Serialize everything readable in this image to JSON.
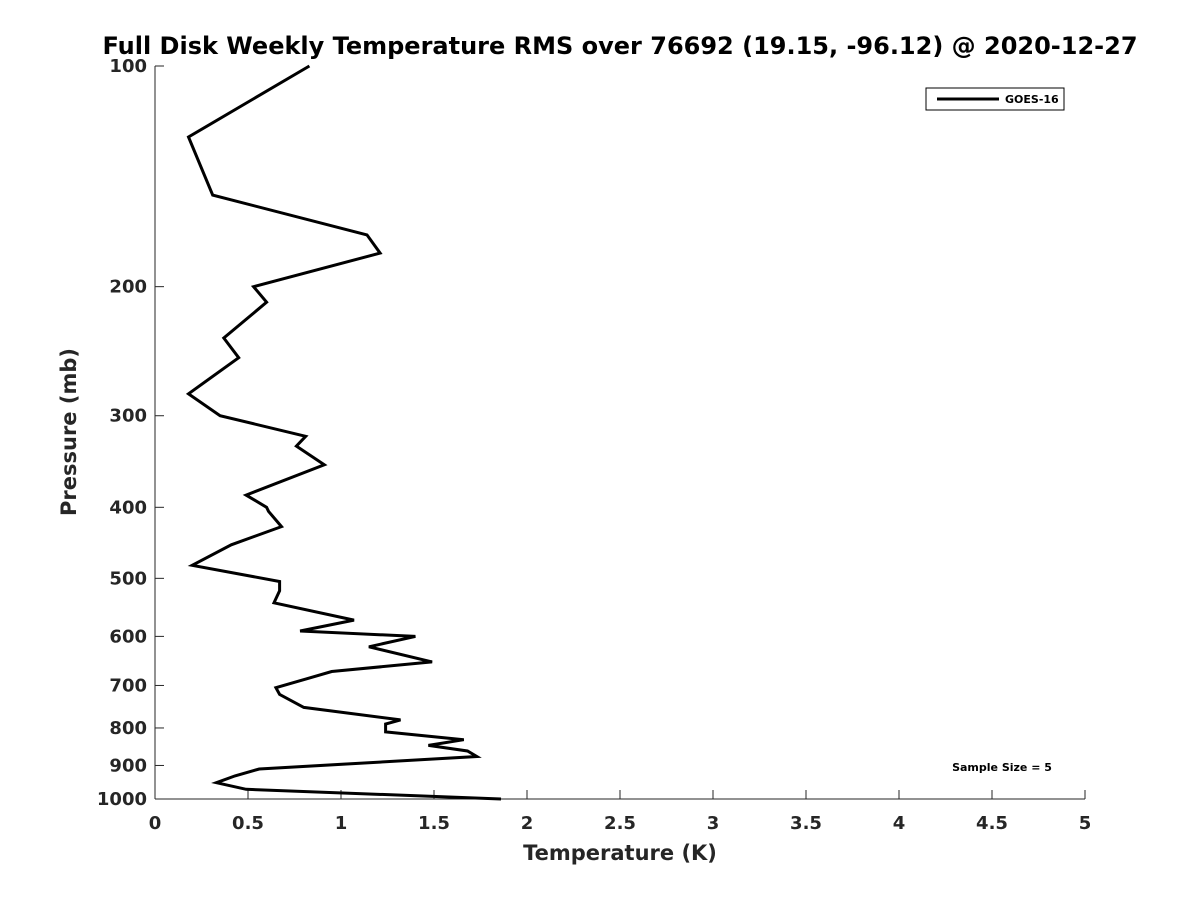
{
  "chart_data": {
    "type": "line",
    "title": "Full Disk Weekly Temperature RMS over 76692 (19.15, -96.12) @ 2020-12-27",
    "xlabel": "Temperature (K)",
    "ylabel": "Pressure (mb)",
    "xlim": [
      0,
      5
    ],
    "ylim": [
      100,
      1000
    ],
    "y_scale": "log",
    "y_reversed": true,
    "x_ticks": [
      "0",
      "0.5",
      "1",
      "1.5",
      "2",
      "2.5",
      "3",
      "3.5",
      "4",
      "4.5",
      "5"
    ],
    "y_ticks": [
      "100",
      "200",
      "300",
      "400",
      "500",
      "600",
      "700",
      "800",
      "900",
      "1000"
    ],
    "grid": false,
    "legend_position": "top-right",
    "annotation": "Sample Size = 5",
    "series": [
      {
        "name": "GOES-16",
        "color": "#000000",
        "x": [
          0.83,
          0.18,
          0.31,
          1.14,
          1.21,
          0.53,
          0.6,
          0.37,
          0.45,
          0.18,
          0.35,
          0.81,
          0.76,
          0.91,
          0.49,
          0.6,
          0.61,
          0.68,
          0.41,
          0.2,
          0.67,
          0.67,
          0.64,
          1.07,
          0.78,
          1.4,
          1.15,
          1.49,
          0.95,
          0.82,
          0.65,
          0.67,
          0.8,
          1.32,
          1.24,
          1.24,
          1.66,
          1.47,
          1.68,
          1.73,
          0.56,
          0.43,
          0.33,
          0.49,
          1.86
        ],
        "y": [
          100,
          125,
          150,
          170,
          180,
          200,
          210,
          235,
          250,
          280,
          300,
          320,
          330,
          350,
          385,
          400,
          405,
          425,
          450,
          480,
          505,
          520,
          540,
          570,
          590,
          600,
          620,
          650,
          670,
          685,
          705,
          720,
          750,
          780,
          790,
          810,
          830,
          845,
          860,
          875,
          910,
          930,
          950,
          970,
          1000
        ]
      }
    ]
  }
}
